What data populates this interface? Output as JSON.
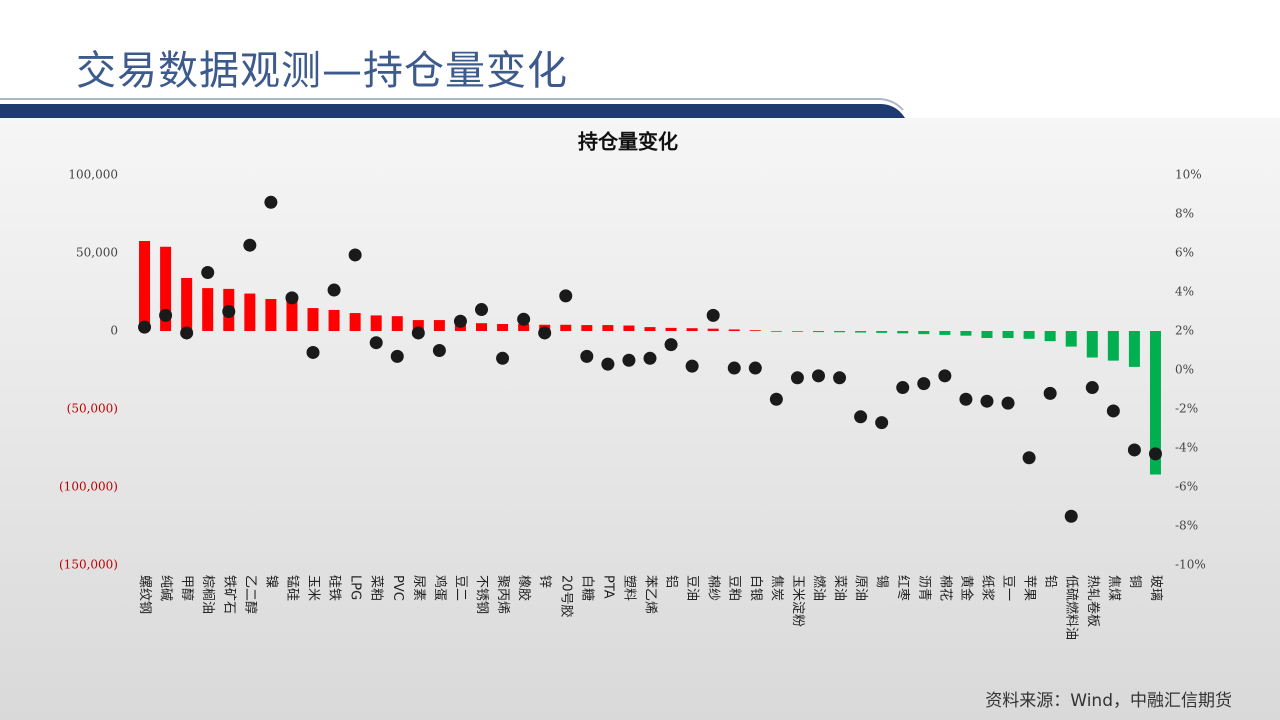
{
  "slide": {
    "title": "交易数据观测—持仓量变化",
    "source": "资料来源：Wind，中融汇信期货"
  },
  "chart_data": {
    "type": "bar",
    "title": "持仓量变化",
    "categories": [
      "螺纹钢",
      "纯碱",
      "甲醇",
      "棕榈油",
      "铁矿石",
      "乙二醇",
      "镍",
      "锰硅",
      "玉米",
      "硅铁",
      "LPG",
      "菜粕",
      "PVC",
      "尿素",
      "鸡蛋",
      "豆二",
      "不锈钢",
      "聚丙烯",
      "橡胶",
      "锌",
      "20号胶",
      "白糖",
      "PTA",
      "塑料",
      "苯乙烯",
      "铝",
      "豆油",
      "棉纱",
      "豆粕",
      "白银",
      "焦炭",
      "玉米淀粉",
      "燃油",
      "菜油",
      "原油",
      "锡",
      "红枣",
      "沥青",
      "棉花",
      "黄金",
      "纸浆",
      "豆一",
      "苹果",
      "铅",
      "低硫燃料油",
      "热轧卷板",
      "焦煤",
      "铜",
      "玻璃"
    ],
    "series": [
      {
        "type": "bar",
        "positive_color": "#ff0000",
        "negative_color": "#00b050",
        "values": [
          57700,
          54000,
          34000,
          27500,
          27000,
          24000,
          20500,
          20000,
          14700,
          13500,
          11500,
          10000,
          9500,
          7000,
          7000,
          6500,
          5000,
          4500,
          4500,
          4000,
          4000,
          3800,
          3800,
          3500,
          2500,
          2000,
          1800,
          1500,
          1000,
          500,
          -300,
          -500,
          -700,
          -800,
          -1000,
          -1200,
          -1500,
          -2000,
          -2500,
          -3000,
          -4500,
          -4500,
          -5000,
          -6500,
          -10000,
          -17000,
          -19000,
          -23000,
          -92000
        ]
      },
      {
        "type": "scatter",
        "axis": "y2",
        "color": "#1a1a1a",
        "values": [
          2.2,
          2.8,
          1.9,
          5.0,
          3.0,
          6.4,
          8.6,
          3.7,
          0.9,
          4.1,
          5.9,
          1.4,
          0.7,
          1.9,
          1.0,
          2.5,
          3.1,
          0.6,
          2.6,
          1.9,
          3.8,
          0.7,
          0.3,
          0.5,
          0.6,
          1.3,
          0.2,
          2.8,
          0.1,
          0.1,
          -1.5,
          -0.4,
          -0.3,
          -0.4,
          -2.4,
          -2.7,
          -0.9,
          -0.7,
          -0.3,
          -1.5,
          -1.6,
          -1.7,
          -4.5,
          -1.2,
          -7.5,
          -0.9,
          -2.1,
          -4.1,
          -4.3
        ]
      }
    ],
    "ylim": [
      -150000,
      100000
    ],
    "yticks": [
      {
        "value": 100000,
        "label": "100,000"
      },
      {
        "value": 50000,
        "label": "50,000"
      },
      0,
      {
        "value": -50000,
        "label": "(50,000)"
      },
      {
        "value": -100000,
        "label": "(100,000)"
      },
      {
        "value": -150000,
        "label": "(150,000)"
      }
    ],
    "y2lim": [
      -10,
      10
    ],
    "y2ticks": [
      {
        "value": 10,
        "label": "10%"
      },
      {
        "value": 8,
        "label": "8%"
      },
      {
        "value": 6,
        "label": "6%"
      },
      {
        "value": 4,
        "label": "4%"
      },
      {
        "value": 2,
        "label": "2%"
      },
      {
        "value": 0,
        "label": "0%"
      },
      {
        "value": -2,
        "label": "-2%"
      },
      {
        "value": -4,
        "label": "-4%"
      },
      {
        "value": -6,
        "label": "-6%"
      },
      {
        "value": -8,
        "label": "-8%"
      },
      {
        "value": -10,
        "label": "-10%"
      }
    ],
    "negative_tick_color": "#c00000",
    "grid": false
  }
}
